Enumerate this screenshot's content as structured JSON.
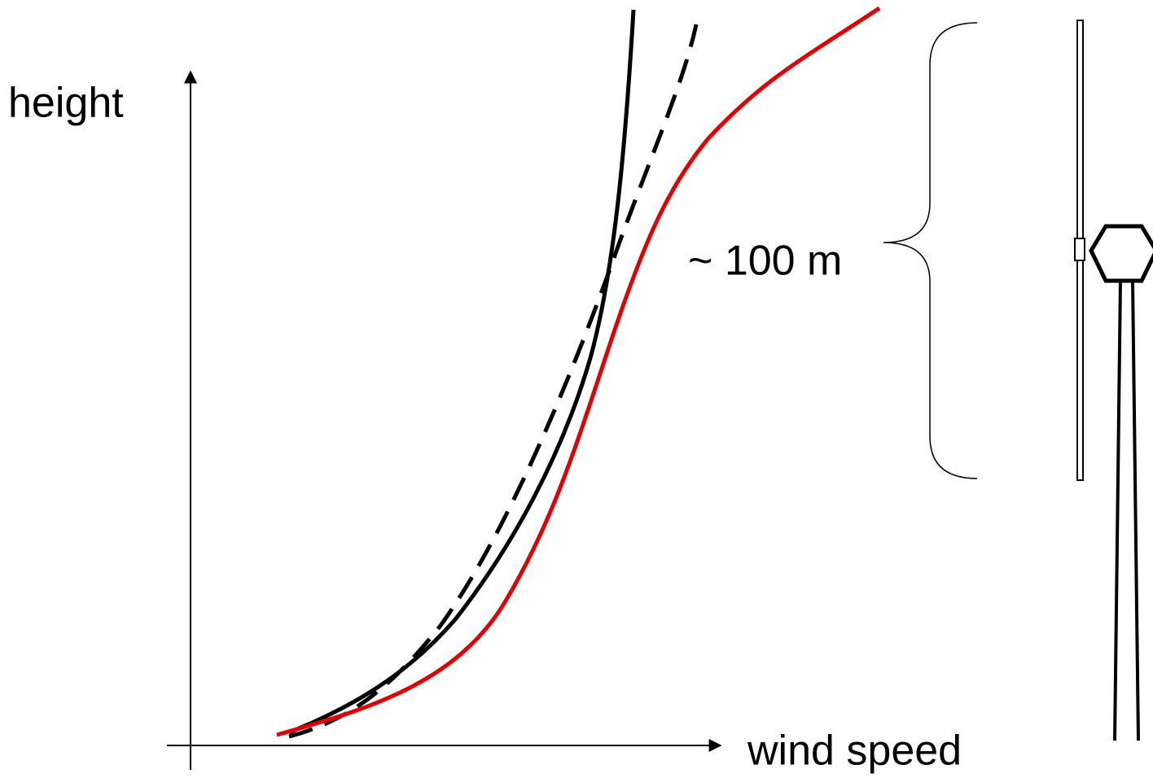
{
  "labels": {
    "y_axis": "height",
    "x_axis": "wind speed",
    "height_marker": "~ 100 m"
  }
}
